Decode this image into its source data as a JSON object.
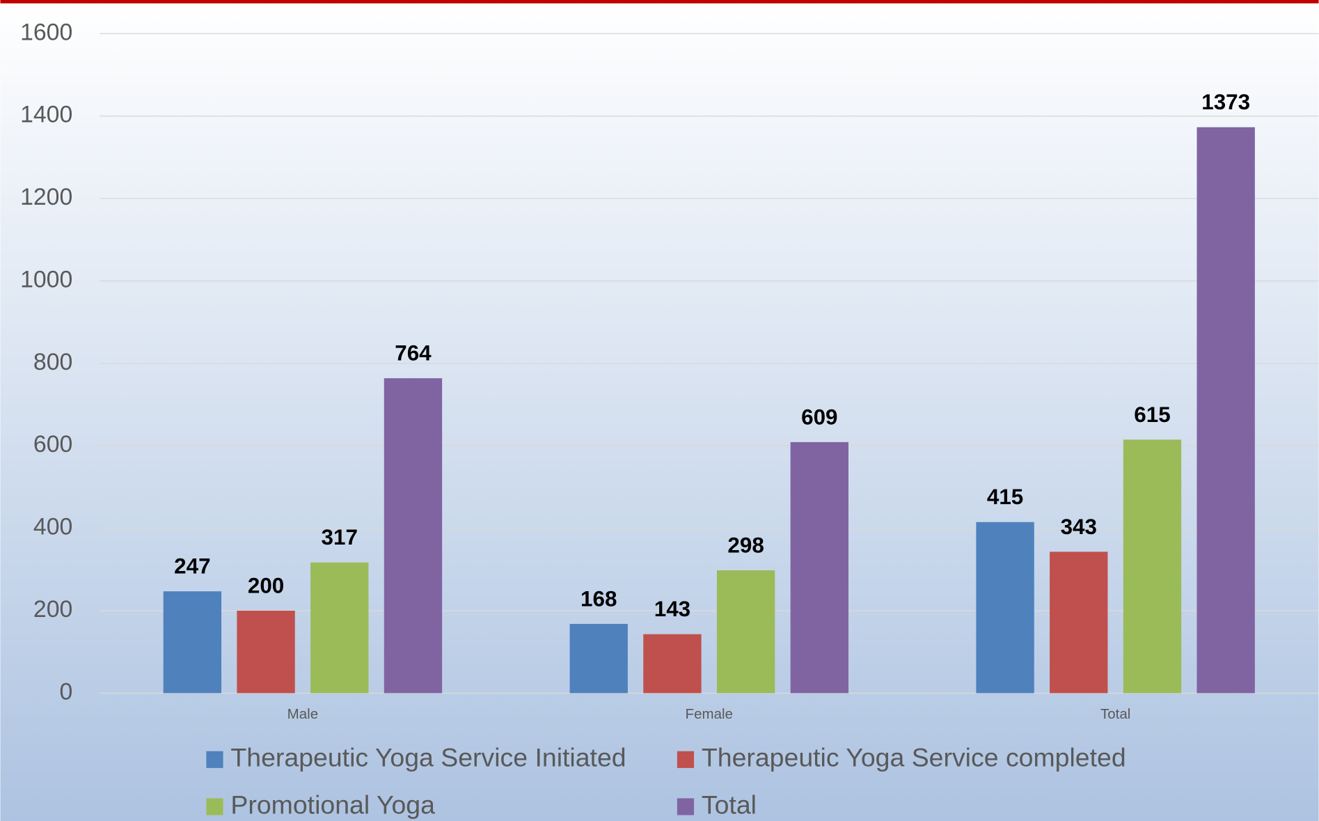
{
  "chart_data": {
    "type": "bar",
    "categories": [
      "Male",
      "Female",
      "Total"
    ],
    "series": [
      {
        "name": "Therapeutic Yoga Service Initiated",
        "color": "#4f81bd",
        "values": [
          247,
          168,
          415
        ]
      },
      {
        "name": "Therapeutic Yoga Service completed",
        "color": "#c0504d",
        "values": [
          200,
          143,
          343
        ]
      },
      {
        "name": "Promotional Yoga",
        "color": "#9bbb59",
        "values": [
          317,
          298,
          615
        ]
      },
      {
        "name": "Total",
        "color": "#8064a2",
        "values": [
          764,
          609,
          1373
        ]
      }
    ],
    "ylim": [
      0,
      1600
    ],
    "yticks": [
      0,
      200,
      400,
      600,
      800,
      1000,
      1200,
      1400,
      1600
    ],
    "grid": true,
    "legend": "bottom"
  }
}
